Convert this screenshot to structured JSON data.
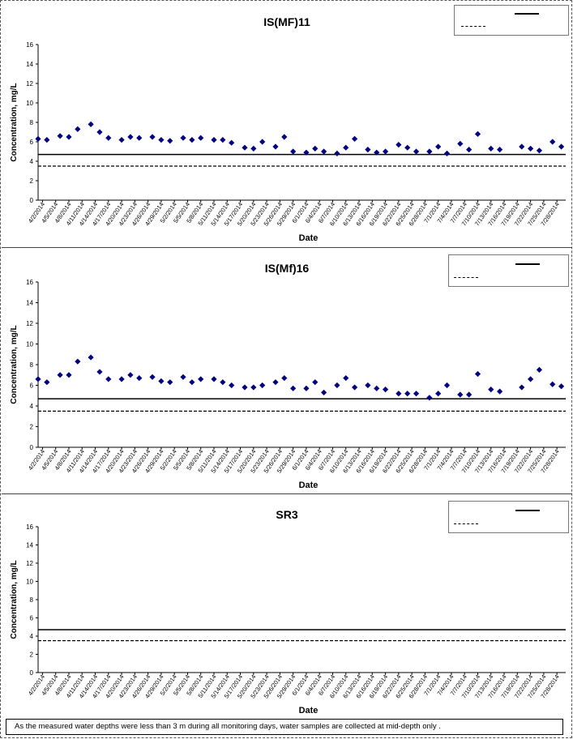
{
  "note": "As the measured water depths were less than 3 m during all monitoring days, water samples are collected  at mid-depth only .",
  "chart_data": [
    {
      "type": "scatter",
      "title": "IS(MF)11",
      "xlabel": "Date",
      "ylabel": "Concentration, mg/L",
      "ylim": [
        0,
        16
      ],
      "yticks": [
        0,
        2,
        4,
        6,
        8,
        10,
        12,
        14,
        16
      ],
      "x_tick_labels": [
        "4/2/2014",
        "4/5/2014",
        "4/8/2014",
        "4/11/2014",
        "4/14/2014",
        "4/17/2014",
        "4/20/2014",
        "4/23/2014",
        "4/26/2014",
        "4/29/2014",
        "5/2/2014",
        "5/5/2014",
        "5/8/2014",
        "5/11/2014",
        "5/14/2014",
        "5/17/2014",
        "5/20/2014",
        "5/23/2014",
        "5/26/2014",
        "5/29/2014",
        "6/1/2014",
        "6/4/2014",
        "6/7/2014",
        "6/10/2014",
        "6/13/2014",
        "6/16/2014",
        "6/19/2014",
        "6/22/2014",
        "6/25/2014",
        "6/28/2014",
        "7/1/2014",
        "7/4/2014",
        "7/7/2014",
        "7/10/2014",
        "7/13/2014",
        "7/16/2014",
        "7/19/2014",
        "7/22/2014",
        "7/25/2014",
        "7/28/2014"
      ],
      "x_start": "4/1/2014",
      "x_end": "7/30/2014",
      "series": [
        {
          "marker": "diamond",
          "color": "#000080",
          "points": [
            [
              "4/1/2014",
              6.3
            ],
            [
              "4/3/2014",
              6.2
            ],
            [
              "4/6/2014",
              6.6
            ],
            [
              "4/8/2014",
              6.5
            ],
            [
              "4/10/2014",
              7.3
            ],
            [
              "4/13/2014",
              7.8
            ],
            [
              "4/15/2014",
              7.0
            ],
            [
              "4/17/2014",
              6.4
            ],
            [
              "4/20/2014",
              6.2
            ],
            [
              "4/22/2014",
              6.5
            ],
            [
              "4/24/2014",
              6.4
            ],
            [
              "4/27/2014",
              6.5
            ],
            [
              "4/29/2014",
              6.2
            ],
            [
              "5/1/2014",
              6.1
            ],
            [
              "5/4/2014",
              6.4
            ],
            [
              "5/6/2014",
              6.2
            ],
            [
              "5/8/2014",
              6.4
            ],
            [
              "5/11/2014",
              6.2
            ],
            [
              "5/13/2014",
              6.2
            ],
            [
              "5/15/2014",
              5.9
            ],
            [
              "5/18/2014",
              5.4
            ],
            [
              "5/20/2014",
              5.3
            ],
            [
              "5/22/2014",
              6.0
            ],
            [
              "5/25/2014",
              5.5
            ],
            [
              "5/27/2014",
              6.5
            ],
            [
              "5/29/2014",
              5.0
            ],
            [
              "6/1/2014",
              4.9
            ],
            [
              "6/3/2014",
              5.3
            ],
            [
              "6/5/2014",
              5.0
            ],
            [
              "6/8/2014",
              4.8
            ],
            [
              "6/10/2014",
              5.4
            ],
            [
              "6/12/2014",
              6.3
            ],
            [
              "6/15/2014",
              5.2
            ],
            [
              "6/17/2014",
              4.9
            ],
            [
              "6/19/2014",
              5.0
            ],
            [
              "6/22/2014",
              5.7
            ],
            [
              "6/24/2014",
              5.4
            ],
            [
              "6/26/2014",
              5.0
            ],
            [
              "6/29/2014",
              5.0
            ],
            [
              "7/1/2014",
              5.5
            ],
            [
              "7/3/2014",
              4.8
            ],
            [
              "7/6/2014",
              5.8
            ],
            [
              "7/8/2014",
              5.2
            ],
            [
              "7/10/2014",
              6.8
            ],
            [
              "7/13/2014",
              5.3
            ],
            [
              "7/15/2014",
              5.2
            ],
            [
              "7/20/2014",
              5.5
            ],
            [
              "7/22/2014",
              5.3
            ],
            [
              "7/24/2014",
              5.1
            ],
            [
              "7/27/2014",
              6.0
            ],
            [
              "7/29/2014",
              5.5
            ]
          ]
        }
      ],
      "reference_lines": [
        {
          "style": "solid",
          "y": 4.7
        },
        {
          "style": "dashed",
          "y": 3.5
        }
      ]
    },
    {
      "type": "scatter",
      "title": "IS(Mf)16",
      "xlabel": "Date",
      "ylabel": "Concentration, mg/L",
      "ylim": [
        0,
        16
      ],
      "yticks": [
        0,
        2,
        4,
        6,
        8,
        10,
        12,
        14,
        16
      ],
      "x_tick_labels": [
        "4/2/2014",
        "4/5/2014",
        "4/8/2014",
        "4/11/2014",
        "4/14/2014",
        "4/17/2014",
        "4/20/2014",
        "4/23/2014",
        "4/26/2014",
        "4/29/2014",
        "5/2/2014",
        "5/5/2014",
        "5/8/2014",
        "5/11/2014",
        "5/14/2014",
        "5/17/2014",
        "5/20/2014",
        "5/23/2014",
        "5/26/2014",
        "5/29/2014",
        "6/1/2014",
        "6/4/2014",
        "6/7/2014",
        "6/10/2014",
        "6/13/2014",
        "6/16/2014",
        "6/19/2014",
        "6/22/2014",
        "6/25/2014",
        "6/28/2014",
        "7/1/2014",
        "7/4/2014",
        "7/7/2014",
        "7/10/2014",
        "7/13/2014",
        "7/16/2014",
        "7/19/2014",
        "7/22/2014",
        "7/25/2014",
        "7/28/2014"
      ],
      "x_start": "4/1/2014",
      "x_end": "7/30/2014",
      "series": [
        {
          "marker": "diamond",
          "color": "#000080",
          "points": [
            [
              "4/1/2014",
              6.6
            ],
            [
              "4/3/2014",
              6.3
            ],
            [
              "4/6/2014",
              7.0
            ],
            [
              "4/8/2014",
              7.0
            ],
            [
              "4/10/2014",
              8.3
            ],
            [
              "4/13/2014",
              8.7
            ],
            [
              "4/15/2014",
              7.3
            ],
            [
              "4/17/2014",
              6.6
            ],
            [
              "4/20/2014",
              6.6
            ],
            [
              "4/22/2014",
              7.0
            ],
            [
              "4/24/2014",
              6.7
            ],
            [
              "4/27/2014",
              6.8
            ],
            [
              "4/29/2014",
              6.4
            ],
            [
              "5/1/2014",
              6.3
            ],
            [
              "5/4/2014",
              6.8
            ],
            [
              "5/6/2014",
              6.3
            ],
            [
              "5/8/2014",
              6.6
            ],
            [
              "5/11/2014",
              6.6
            ],
            [
              "5/13/2014",
              6.3
            ],
            [
              "5/15/2014",
              6.0
            ],
            [
              "5/18/2014",
              5.8
            ],
            [
              "5/20/2014",
              5.8
            ],
            [
              "5/22/2014",
              6.0
            ],
            [
              "5/25/2014",
              6.3
            ],
            [
              "5/27/2014",
              6.7
            ],
            [
              "5/29/2014",
              5.7
            ],
            [
              "6/1/2014",
              5.7
            ],
            [
              "6/3/2014",
              6.3
            ],
            [
              "6/5/2014",
              5.3
            ],
            [
              "6/8/2014",
              6.0
            ],
            [
              "6/10/2014",
              6.7
            ],
            [
              "6/12/2014",
              5.8
            ],
            [
              "6/15/2014",
              6.0
            ],
            [
              "6/17/2014",
              5.7
            ],
            [
              "6/19/2014",
              5.6
            ],
            [
              "6/22/2014",
              5.2
            ],
            [
              "6/24/2014",
              5.2
            ],
            [
              "6/26/2014",
              5.2
            ],
            [
              "6/29/2014",
              4.8
            ],
            [
              "7/1/2014",
              5.2
            ],
            [
              "7/3/2014",
              6.0
            ],
            [
              "7/6/2014",
              5.1
            ],
            [
              "7/8/2014",
              5.1
            ],
            [
              "7/10/2014",
              7.1
            ],
            [
              "7/13/2014",
              5.6
            ],
            [
              "7/15/2014",
              5.4
            ],
            [
              "7/20/2014",
              5.8
            ],
            [
              "7/22/2014",
              6.6
            ],
            [
              "7/24/2014",
              7.5
            ],
            [
              "7/27/2014",
              6.1
            ],
            [
              "7/29/2014",
              5.9
            ]
          ]
        }
      ],
      "reference_lines": [
        {
          "style": "solid",
          "y": 4.7
        },
        {
          "style": "dashed",
          "y": 3.5
        }
      ]
    },
    {
      "type": "scatter",
      "title": "SR3",
      "xlabel": "Date",
      "ylabel": "Concentration, mg/L",
      "ylim": [
        0,
        16
      ],
      "yticks": [
        0,
        2,
        4,
        6,
        8,
        10,
        12,
        14,
        16
      ],
      "x_tick_labels": [
        "4/2/2014",
        "4/5/2014",
        "4/8/2014",
        "4/11/2014",
        "4/14/2014",
        "4/17/2014",
        "4/20/2014",
        "4/23/2014",
        "4/26/2014",
        "4/29/2014",
        "5/2/2014",
        "5/5/2014",
        "5/8/2014",
        "5/11/2014",
        "5/14/2014",
        "5/17/2014",
        "5/20/2014",
        "5/23/2014",
        "5/26/2014",
        "5/29/2014",
        "6/1/2014",
        "6/4/2014",
        "6/7/2014",
        "6/10/2014",
        "6/13/2014",
        "6/16/2014",
        "6/19/2014",
        "6/22/2014",
        "6/25/2014",
        "6/28/2014",
        "7/1/2014",
        "7/4/2014",
        "7/7/2014",
        "7/10/2014",
        "7/13/2014",
        "7/16/2014",
        "7/19/2014",
        "7/22/2014",
        "7/25/2014",
        "7/28/2014"
      ],
      "x_start": "4/1/2014",
      "x_end": "7/30/2014",
      "series": [],
      "reference_lines": [
        {
          "style": "solid",
          "y": 4.7
        },
        {
          "style": "dashed",
          "y": 3.5
        }
      ]
    }
  ]
}
